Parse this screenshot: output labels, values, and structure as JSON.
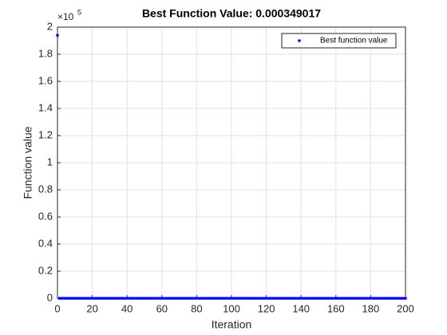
{
  "chart_data": {
    "type": "scatter",
    "title": "Best Function Value: 0.000349017",
    "xlabel": "Iteration",
    "ylabel": "Function value",
    "y_multiplier": "×10",
    "y_multiplier_exponent": "5",
    "xlim": [
      0,
      200
    ],
    "xticks": [
      0,
      20,
      40,
      60,
      80,
      100,
      120,
      140,
      160,
      180,
      200
    ],
    "ylim": [
      0,
      2
    ],
    "yticks": [
      0,
      0.2,
      0.4,
      0.6,
      0.8,
      1,
      1.2,
      1.4,
      1.6,
      1.8,
      2
    ],
    "grid": true,
    "legend": "top-right",
    "x": [
      0,
      1,
      2,
      3,
      4,
      5,
      6,
      7,
      8,
      9,
      10,
      11,
      12,
      13,
      14,
      15,
      16,
      17,
      18,
      19,
      20,
      21,
      22,
      23,
      24,
      25,
      26,
      27,
      28,
      29,
      30,
      31,
      32,
      33,
      34,
      35,
      36,
      37,
      38,
      39,
      40,
      41,
      42,
      43,
      44,
      45,
      46,
      47,
      48,
      49,
      50,
      51,
      52,
      53,
      54,
      55,
      56,
      57,
      58,
      59,
      60,
      61,
      62,
      63,
      64,
      65,
      66,
      67,
      68,
      69,
      70,
      71,
      72,
      73,
      74,
      75,
      76,
      77,
      78,
      79,
      80,
      81,
      82,
      83,
      84,
      85,
      86,
      87,
      88,
      89,
      90,
      91,
      92,
      93,
      94,
      95,
      96,
      97,
      98,
      99,
      100,
      101,
      102,
      103,
      104,
      105,
      106,
      107,
      108,
      109,
      110,
      111,
      112,
      113,
      114,
      115,
      116,
      117,
      118,
      119,
      120,
      121,
      122,
      123,
      124,
      125,
      126,
      127,
      128,
      129,
      130,
      131,
      132,
      133,
      134,
      135,
      136,
      137,
      138,
      139,
      140,
      141,
      142,
      143,
      144,
      145,
      146,
      147,
      148,
      149,
      150,
      151,
      152,
      153,
      154,
      155,
      156,
      157,
      158,
      159,
      160,
      161,
      162,
      163,
      164,
      165,
      166,
      167,
      168,
      169,
      170,
      171,
      172,
      173,
      174,
      175,
      176,
      177,
      178,
      179,
      180,
      181,
      182,
      183,
      184,
      185,
      186,
      187,
      188,
      189,
      190,
      191,
      192,
      193,
      194,
      195,
      196,
      197,
      198,
      199,
      200
    ],
    "series": [
      {
        "name": "Best function value",
        "color": "#0000ff",
        "values": [
          1.94,
          0,
          0,
          0,
          0,
          0,
          0,
          0,
          0,
          0,
          0,
          0,
          0,
          0,
          0,
          0,
          0,
          0,
          0,
          0,
          0,
          0,
          0,
          0,
          0,
          0,
          0,
          0,
          0,
          0,
          0,
          0,
          0,
          0,
          0,
          0,
          0,
          0,
          0,
          0,
          0,
          0,
          0,
          0,
          0,
          0,
          0,
          0,
          0,
          0,
          0,
          0,
          0,
          0,
          0,
          0,
          0,
          0,
          0,
          0,
          0,
          0,
          0,
          0,
          0,
          0,
          0,
          0,
          0,
          0,
          0,
          0,
          0,
          0,
          0,
          0,
          0,
          0,
          0,
          0,
          0,
          0,
          0,
          0,
          0,
          0,
          0,
          0,
          0,
          0,
          0,
          0,
          0,
          0,
          0,
          0,
          0,
          0,
          0,
          0,
          0,
          0,
          0,
          0,
          0,
          0,
          0,
          0,
          0,
          0,
          0,
          0,
          0,
          0,
          0,
          0,
          0,
          0,
          0,
          0,
          0,
          0,
          0,
          0,
          0,
          0,
          0,
          0,
          0,
          0,
          0,
          0,
          0,
          0,
          0,
          0,
          0,
          0,
          0,
          0,
          0,
          0,
          0,
          0,
          0,
          0,
          0,
          0,
          0,
          0,
          0,
          0,
          0,
          0,
          0,
          0,
          0,
          0,
          0,
          0,
          0,
          0,
          0,
          0,
          0,
          0,
          0,
          0,
          0,
          0,
          0,
          0,
          0,
          0,
          0,
          0,
          0,
          0,
          0,
          0,
          0,
          0,
          0,
          0,
          0,
          0,
          0,
          0,
          0,
          0,
          0,
          0,
          0,
          0,
          0,
          0,
          0,
          0,
          0,
          0,
          0
        ]
      }
    ]
  }
}
